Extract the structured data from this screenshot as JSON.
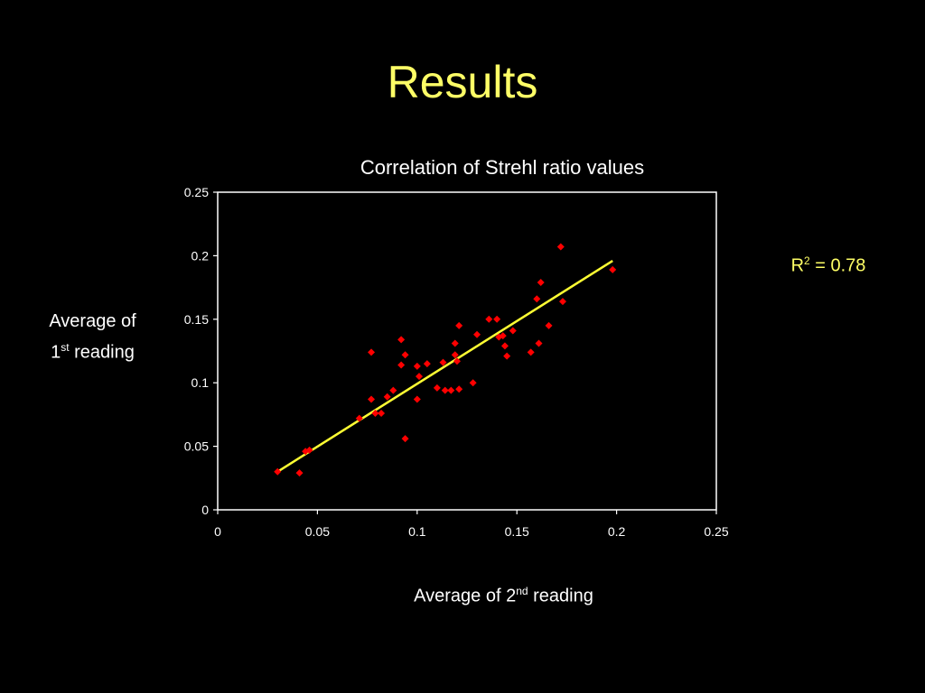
{
  "slide": {
    "title": "Results"
  },
  "r2": {
    "prefix": "R",
    "sup": "2",
    "suffix": " = 0.78"
  },
  "colors": {
    "background": "#000000",
    "title": "#ffff66",
    "points": "#ff0000",
    "trendline": "#ffff33",
    "axis": "#ffffff"
  },
  "chart_data": {
    "type": "scatter",
    "title": "Correlation of Strehl ratio values",
    "xlabel": {
      "prefix": "Average of 2",
      "sup": "nd",
      "suffix": " reading"
    },
    "ylabel": {
      "line1": "Average of",
      "prefix": "1",
      "sup": "st",
      "suffix": " reading"
    },
    "xlim": [
      0,
      0.25
    ],
    "ylim": [
      0,
      0.25
    ],
    "x_ticks": [
      "0",
      "0.05",
      "0.1",
      "0.15",
      "0.2",
      "0.25"
    ],
    "y_ticks": [
      "0",
      "0.05",
      "0.1",
      "0.15",
      "0.2",
      "0.25"
    ],
    "grid": false,
    "series": [
      {
        "points": [
          [
            0.03,
            0.03
          ],
          [
            0.041,
            0.029
          ],
          [
            0.044,
            0.046
          ],
          [
            0.046,
            0.047
          ],
          [
            0.071,
            0.072
          ],
          [
            0.077,
            0.087
          ],
          [
            0.077,
            0.124
          ],
          [
            0.079,
            0.076
          ],
          [
            0.082,
            0.076
          ],
          [
            0.085,
            0.089
          ],
          [
            0.088,
            0.094
          ],
          [
            0.092,
            0.134
          ],
          [
            0.092,
            0.114
          ],
          [
            0.094,
            0.122
          ],
          [
            0.094,
            0.056
          ],
          [
            0.1,
            0.113
          ],
          [
            0.1,
            0.087
          ],
          [
            0.101,
            0.105
          ],
          [
            0.105,
            0.115
          ],
          [
            0.11,
            0.096
          ],
          [
            0.113,
            0.116
          ],
          [
            0.114,
            0.094
          ],
          [
            0.117,
            0.094
          ],
          [
            0.119,
            0.131
          ],
          [
            0.119,
            0.122
          ],
          [
            0.12,
            0.117
          ],
          [
            0.121,
            0.095
          ],
          [
            0.121,
            0.145
          ],
          [
            0.128,
            0.1
          ],
          [
            0.13,
            0.138
          ],
          [
            0.136,
            0.15
          ],
          [
            0.14,
            0.15
          ],
          [
            0.141,
            0.136
          ],
          [
            0.143,
            0.137
          ],
          [
            0.144,
            0.129
          ],
          [
            0.145,
            0.121
          ],
          [
            0.148,
            0.141
          ],
          [
            0.157,
            0.124
          ],
          [
            0.16,
            0.166
          ],
          [
            0.161,
            0.131
          ],
          [
            0.162,
            0.179
          ],
          [
            0.166,
            0.145
          ],
          [
            0.172,
            0.207
          ],
          [
            0.173,
            0.164
          ],
          [
            0.198,
            0.189
          ]
        ]
      }
    ],
    "trendline": {
      "type": "linear",
      "x": [
        0.03,
        0.198
      ],
      "y": [
        0.03,
        0.196
      ]
    }
  }
}
